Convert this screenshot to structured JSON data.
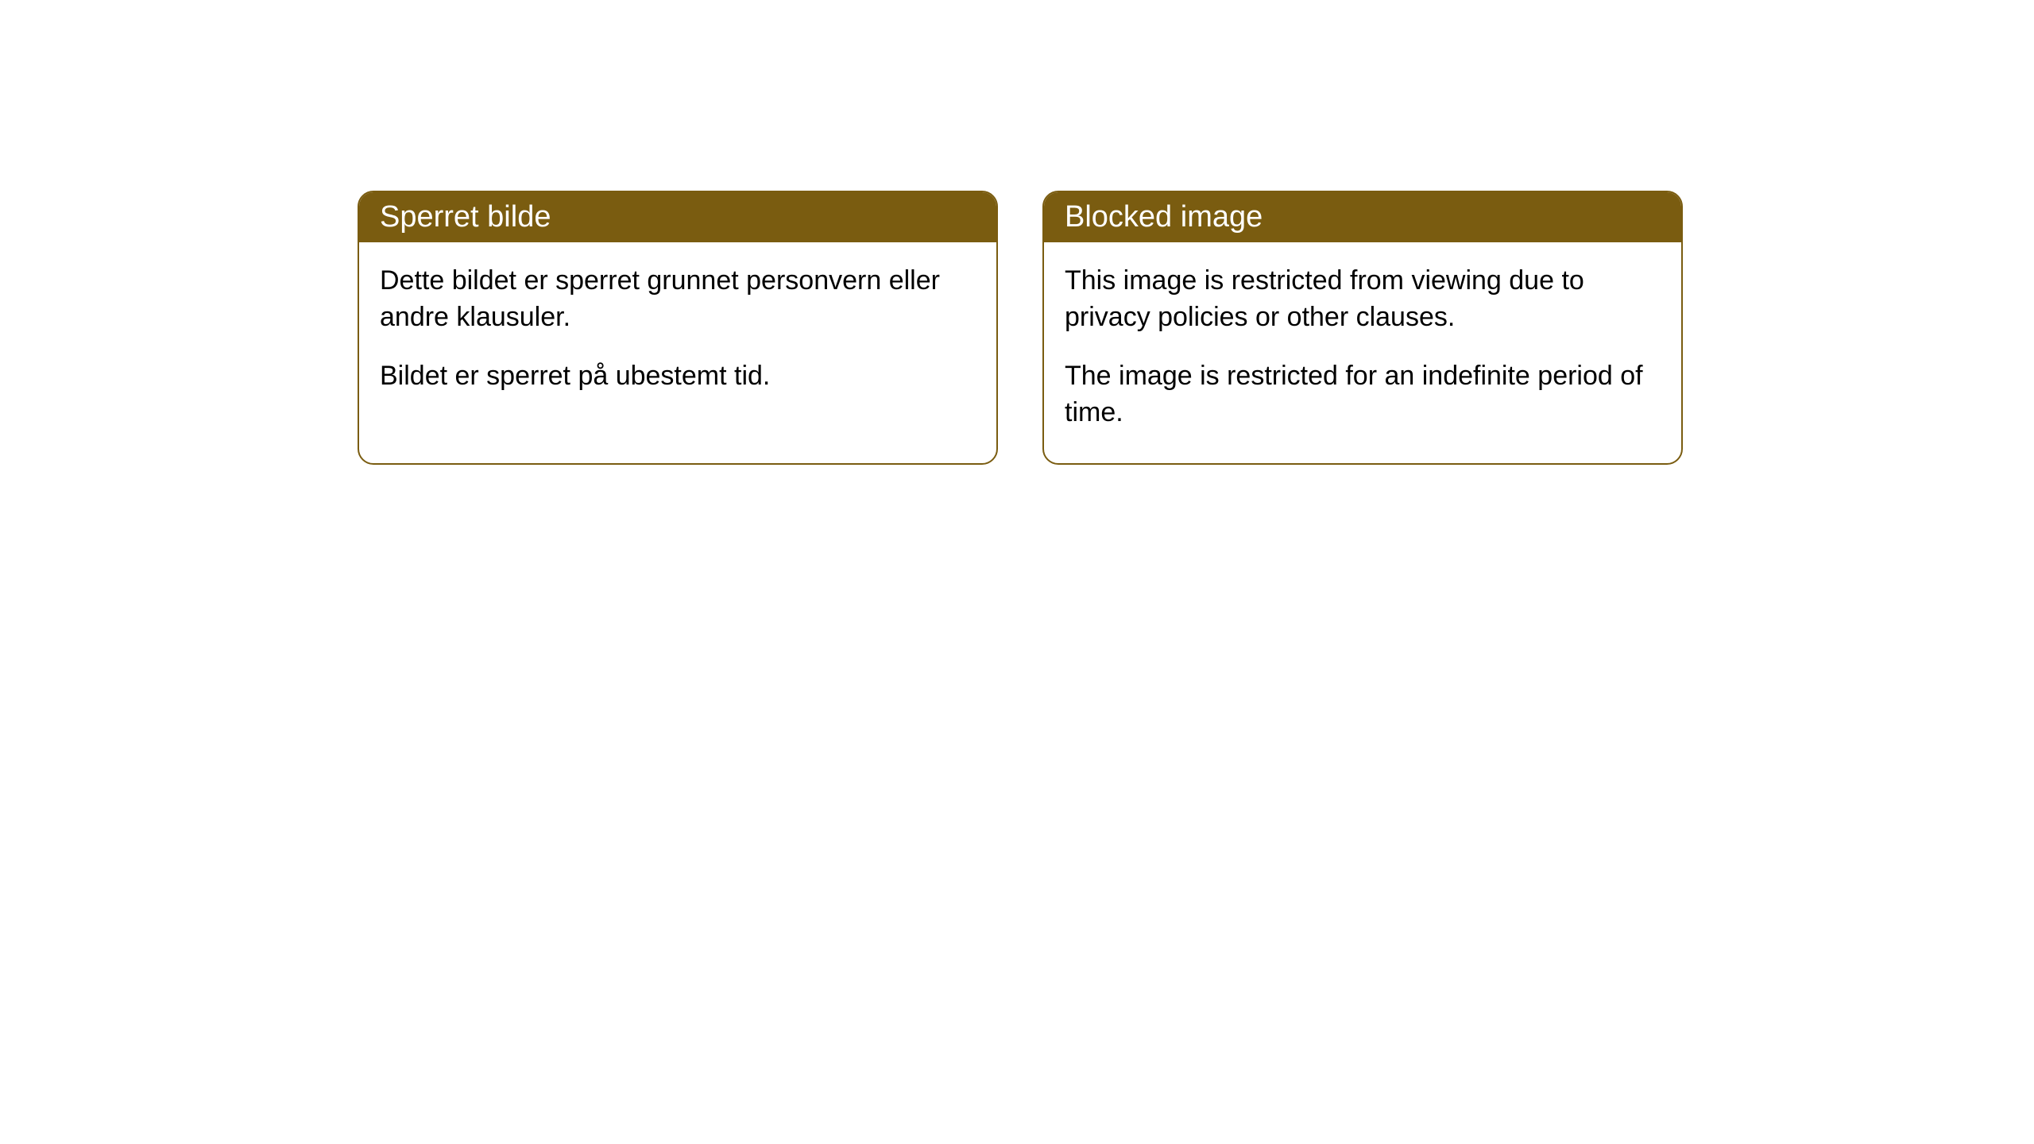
{
  "theme": {
    "header_bg_color": "#7a5c10",
    "header_text_color": "#ffffff",
    "border_color": "#7a5c10",
    "body_bg_color": "#ffffff",
    "body_text_color": "#000000",
    "border_radius": 20,
    "header_fontsize": 38,
    "body_fontsize": 34
  },
  "cards": {
    "left": {
      "title": "Sperret bilde",
      "paragraph1": "Dette bildet er sperret grunnet personvern eller andre klausuler.",
      "paragraph2": "Bildet er sperret på ubestemt tid."
    },
    "right": {
      "title": "Blocked image",
      "paragraph1": "This image is restricted from viewing due to privacy policies or other clauses.",
      "paragraph2": "The image is restricted for an indefinite period of time."
    }
  }
}
